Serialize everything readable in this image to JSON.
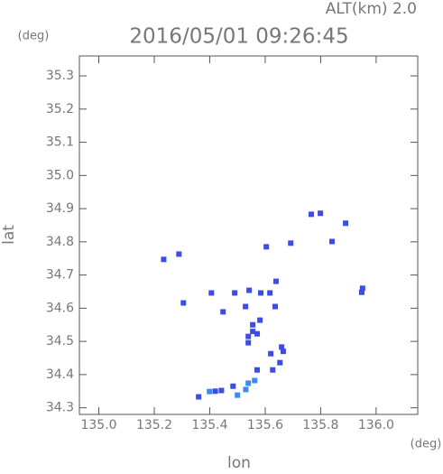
{
  "chart_data": {
    "type": "scatter",
    "title": "2016/05/01 09:26:45",
    "subtitle": "ALT(km) 2.0",
    "x_label": "lon",
    "y_label": "lat",
    "x_unit": "(deg)",
    "y_unit": "(deg)",
    "xlim": [
      134.93,
      136.15
    ],
    "ylim": [
      34.28,
      35.36
    ],
    "xticks": [
      {
        "value": 135.0,
        "label": "135.0"
      },
      135.2,
      135.4,
      135.6,
      135.8,
      {
        "value": 136.0,
        "label": "136.0"
      }
    ],
    "yticks": [
      34.3,
      34.4,
      34.5,
      34.6,
      34.7,
      34.8,
      34.9,
      {
        "value": 35.0,
        "label": "35.0"
      },
      35.1,
      35.2,
      35.3
    ],
    "series": [
      {
        "color": "#3c4ce6",
        "x": [
          135.234,
          135.289,
          135.305,
          135.766,
          135.799,
          135.89,
          135.841,
          135.951,
          135.948,
          135.604,
          135.692,
          135.406,
          135.49,
          135.542,
          135.584,
          135.617,
          135.639,
          135.448,
          135.529,
          135.636,
          135.555,
          135.581,
          135.539,
          135.571,
          135.539,
          135.555,
          135.62,
          135.659,
          135.665,
          135.653,
          135.627,
          135.571,
          135.484,
          135.442,
          135.42,
          135.36
        ],
        "y": [
          34.747,
          34.763,
          34.616,
          34.883,
          34.886,
          34.856,
          34.801,
          34.66,
          34.648,
          34.785,
          34.796,
          34.646,
          34.646,
          34.654,
          34.646,
          34.646,
          34.681,
          34.589,
          34.605,
          34.605,
          34.55,
          34.564,
          34.515,
          34.523,
          34.496,
          34.53,
          34.463,
          34.483,
          34.47,
          34.436,
          34.414,
          34.414,
          34.365,
          34.352,
          34.35,
          34.333
        ]
      },
      {
        "color": "#3c8cf0",
        "x": [
          135.562,
          135.539,
          135.399,
          135.5,
          135.53
        ],
        "y": [
          34.382,
          34.374,
          34.349,
          34.338,
          34.355
        ]
      }
    ]
  }
}
